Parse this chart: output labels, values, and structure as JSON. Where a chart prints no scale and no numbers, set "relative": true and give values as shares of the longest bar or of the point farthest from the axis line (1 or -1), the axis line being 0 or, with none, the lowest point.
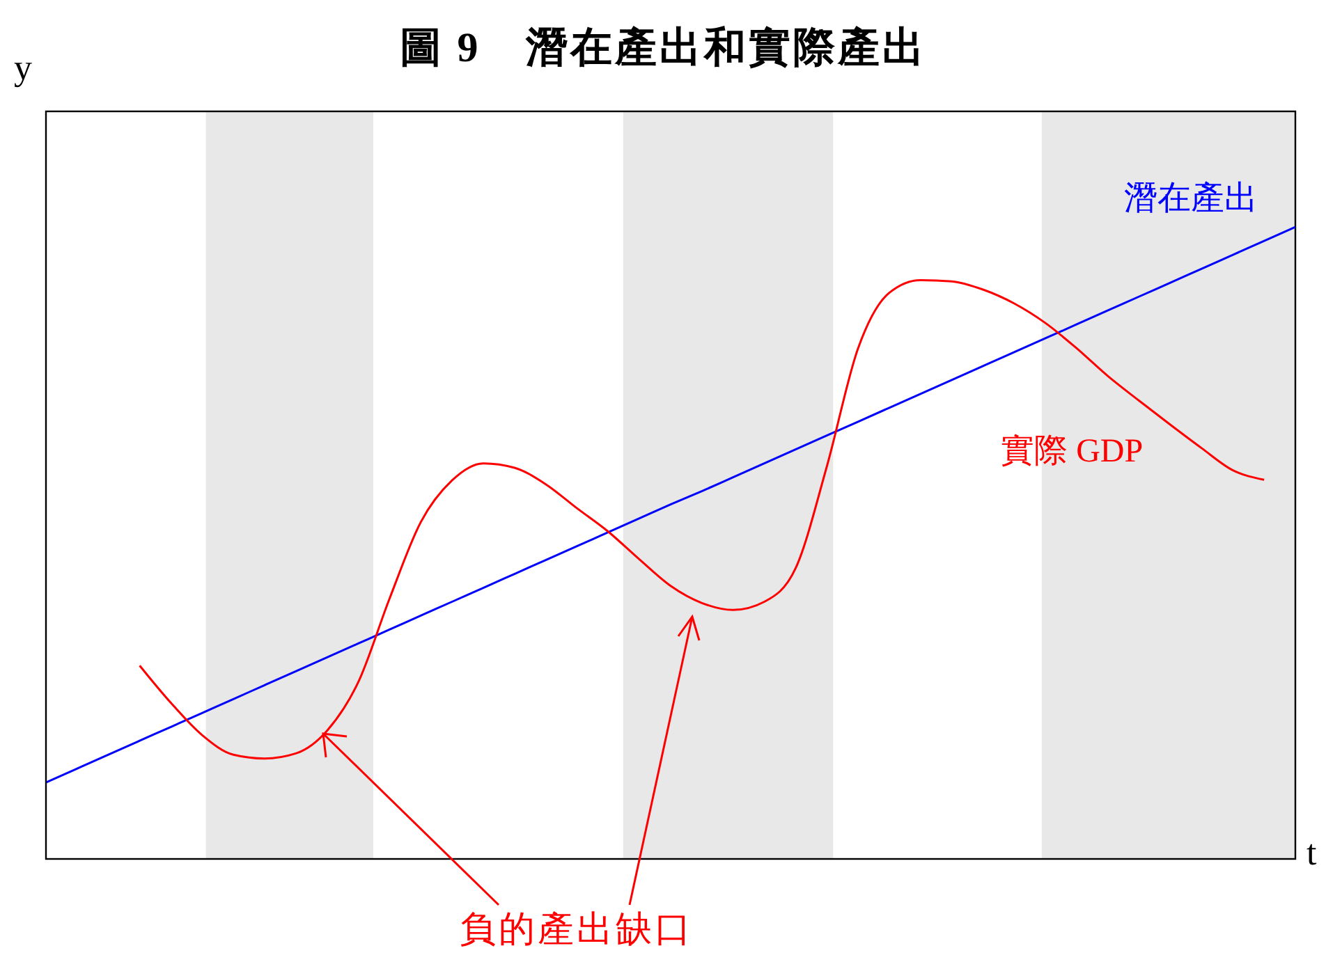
{
  "chart_data": {
    "type": "line",
    "title": "圖 9　潛在產出和實際產出",
    "xlabel": "t",
    "ylabel": "y",
    "relative": true,
    "categories": [
      null,
      null,
      null,
      null,
      null,
      null,
      null,
      null,
      null,
      null,
      null,
      null,
      null,
      null,
      null,
      null,
      null,
      null,
      null,
      null,
      null,
      null,
      null,
      null,
      null,
      null,
      null,
      null,
      null,
      null,
      null,
      null,
      null,
      null,
      null,
      null,
      null,
      null,
      null,
      null,
      null
    ],
    "series": [
      {
        "name": "潛在產出",
        "color": "#0000ff",
        "values": [
          0.121,
          0.143,
          0.165,
          0.187,
          0.209,
          0.231,
          0.253,
          0.275,
          0.297,
          0.319,
          0.341,
          0.363,
          0.385,
          0.407,
          0.429,
          0.451,
          0.473,
          0.495,
          0.517,
          0.539,
          0.561,
          0.582,
          0.604,
          0.626,
          0.648,
          0.67,
          0.692,
          0.714,
          0.736,
          0.758,
          0.78,
          0.802,
          0.824,
          0.846,
          0.868,
          0.89,
          0.912,
          0.934,
          0.956,
          0.978,
          1
        ]
      },
      {
        "name": "實際 GDP",
        "color": "#ff0000",
        "values": [
          null,
          null,
          null,
          0.306,
          0.247,
          0.196,
          0.165,
          0.159,
          0.167,
          0.203,
          0.28,
          0.412,
          0.533,
          0.599,
          0.626,
          0.619,
          0.593,
          0.555,
          0.518,
          0.474,
          0.432,
          0.405,
          0.394,
          0.407,
          0.46,
          0.621,
          0.808,
          0.896,
          0.916,
          0.914,
          0.901,
          0.879,
          0.848,
          0.808,
          0.764,
          0.725,
          0.687,
          0.65,
          0.615,
          0.6,
          null
        ]
      }
    ],
    "annotations": [
      "負的產出缺口"
    ],
    "grid": false,
    "marker": "none",
    "line_style": "solid"
  }
}
